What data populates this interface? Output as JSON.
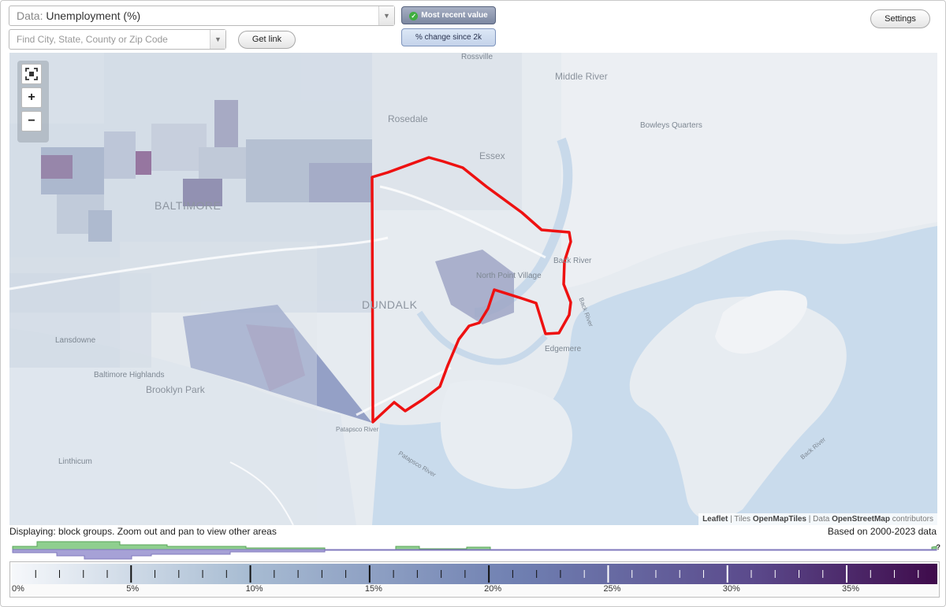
{
  "data_select": {
    "prefix": "Data:",
    "value": "Unemployment (%)"
  },
  "search": {
    "placeholder": "Find City, State, County or Zip Code"
  },
  "buttons": {
    "get_link": "Get link",
    "settings": "Settings"
  },
  "modes": {
    "most_recent": "Most recent value",
    "pct_change": "% change since 2k"
  },
  "zoom": {
    "fit_icon": "fullscreen-icon",
    "plus": "+",
    "minus": "−"
  },
  "map_labels": {
    "baltimore": "BALTIMORE",
    "dundalk": "DUNDALK",
    "middle_river": "Middle River",
    "rosedale": "Rosedale",
    "rossville": "Rossville",
    "essex": "Essex",
    "bowleys_quarters": "Bowleys Quarters",
    "back_river": "Back River",
    "north_point_village": "North Point Village",
    "edgemere": "Edgemere",
    "lansdowne": "Lansdowne",
    "baltimore_highlands": "Baltimore Highlands",
    "brooklyn_park": "Brooklyn Park",
    "linthicum": "Linthicum",
    "patapsco_river": "Patapsco River",
    "patapsco_river_2": "Patapsco River",
    "back_river_2": "Back River",
    "back_river_3": "Back River"
  },
  "attribution": {
    "leaflet": "Leaflet",
    "tiles": "Tiles",
    "omt": "OpenMapTiles",
    "data": "Data",
    "osm": "OpenStreetMap",
    "contrib": "contributors"
  },
  "status": {
    "displaying": "Displaying: block groups. Zoom out and pan to view other areas",
    "based_on": "Based on 2000-2023 data"
  },
  "histogram": {
    "unknown_mark": "?"
  },
  "legend": {
    "labels": [
      "0%",
      "5%",
      "10%",
      "15%",
      "20%",
      "25%",
      "30%",
      "35%"
    ],
    "max_value": 38.8,
    "colors": {
      "low": "#f4f6fa",
      "mid": "#7e97bd",
      "high": "#3f0b4b"
    }
  },
  "colors": {
    "selection_outline": "#ee1111",
    "water": "#c6d8ea",
    "land": "#eef1f4",
    "histogram_green": "#7cc27c",
    "histogram_purple": "#9a93c8"
  }
}
